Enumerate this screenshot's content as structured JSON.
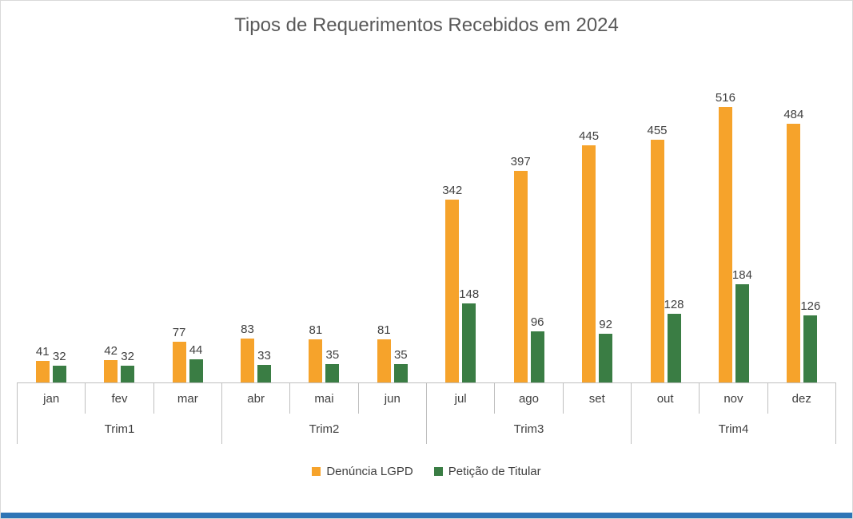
{
  "chart_data": {
    "type": "bar",
    "title": "Tipos de Requerimentos Recebidos em 2024",
    "categories": [
      "jan",
      "fev",
      "mar",
      "abr",
      "mai",
      "jun",
      "jul",
      "ago",
      "set",
      "out",
      "nov",
      "dez"
    ],
    "group_labels": [
      "Trim1",
      "Trim2",
      "Trim3",
      "Trim4"
    ],
    "series": [
      {
        "name": "Denúncia LGPD",
        "color": "#F6A32B",
        "values": [
          41,
          42,
          77,
          83,
          81,
          81,
          342,
          397,
          445,
          455,
          516,
          484
        ]
      },
      {
        "name": "Petição de Titular",
        "color": "#3A7D44",
        "values": [
          32,
          32,
          44,
          33,
          35,
          35,
          148,
          96,
          92,
          128,
          184,
          126
        ]
      }
    ],
    "xlabel": "",
    "ylabel": "",
    "ylim": [
      0,
      550
    ],
    "grid": false,
    "legend_position": "bottom",
    "data_labels": true,
    "colors": {
      "title_text": "#595959",
      "label_text": "#404040",
      "axis_line": "#BFBFBF",
      "accent_bottom_bar": "#2E75B6"
    }
  }
}
